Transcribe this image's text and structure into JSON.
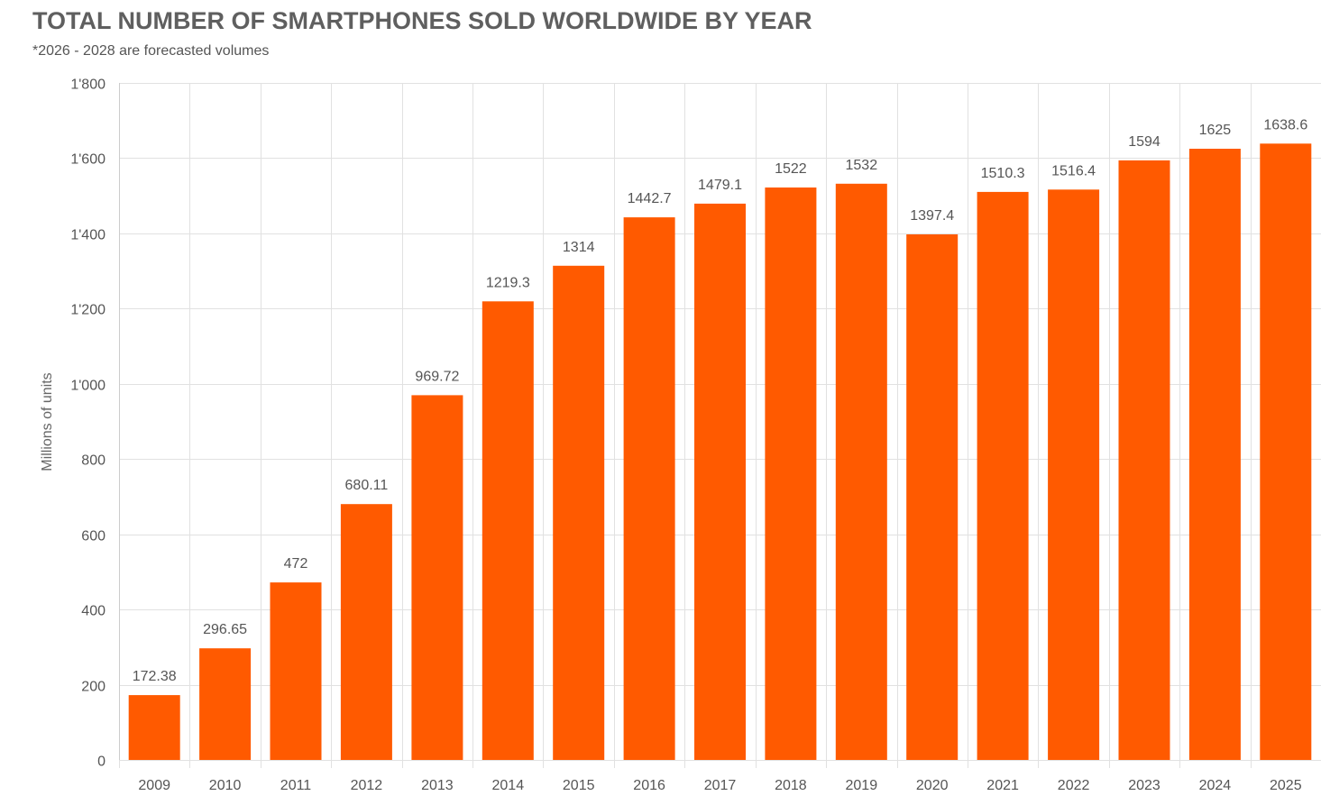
{
  "chart_data": {
    "type": "bar",
    "title": "TOTAL NUMBER OF SMARTPHONES SOLD WORLDWIDE BY YEAR",
    "subtitle": "*2026 - 2028 are forecasted volumes",
    "xlabel": "",
    "ylabel": "Millions of units",
    "categories": [
      "2009",
      "2010",
      "2011",
      "2012",
      "2013",
      "2014",
      "2015",
      "2016",
      "2017",
      "2018",
      "2019",
      "2020",
      "2021",
      "2022",
      "2023",
      "2024",
      "2025"
    ],
    "values": [
      172.38,
      296.65,
      472,
      680.11,
      969.72,
      1219.3,
      1314,
      1442.7,
      1479.1,
      1522,
      1532,
      1397.4,
      1510.3,
      1516.4,
      1594,
      1625,
      1638.6
    ],
    "value_labels": [
      "172.38",
      "296.65",
      "472",
      "680.11",
      "969.72",
      "1219.3",
      "1314",
      "1442.7",
      "1479.1",
      "1522",
      "1532",
      "1397.4",
      "1510.3",
      "1516.4",
      "1594",
      "1625",
      "1638.6"
    ],
    "ylim": [
      0,
      1800
    ],
    "yticks": [
      0,
      200,
      400,
      600,
      800,
      1000,
      1200,
      1400,
      1600,
      1800
    ],
    "ytick_labels": [
      "0",
      "200",
      "400",
      "600",
      "800",
      "1'000",
      "1'200",
      "1'400",
      "1'600",
      "1'800"
    ],
    "grid": true,
    "legend": "none",
    "colors": {
      "bar": "#ff5a00",
      "grid": "#e1e1e1",
      "text": "#555555",
      "title": "#5f5f5f"
    }
  }
}
